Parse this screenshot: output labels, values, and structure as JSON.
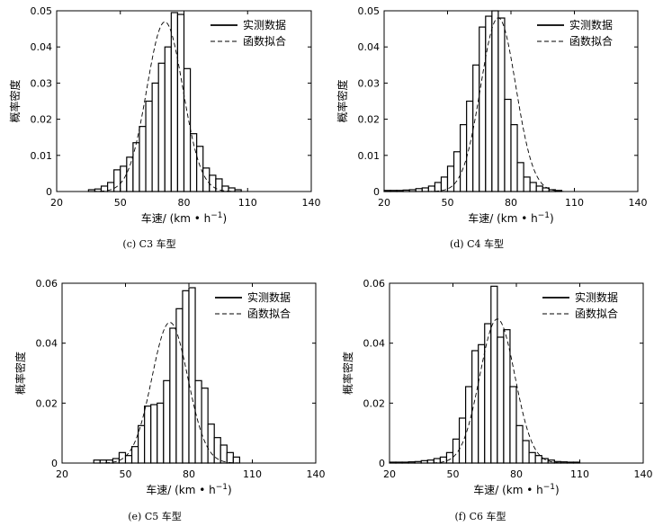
{
  "chart_data": [
    {
      "type": "bar",
      "panel_caption": "(c) C3 车型",
      "xlabel": "车速/ (km • h",
      "xlabel_sup": "−1",
      "xlabel_suffix": ")",
      "ylabel": "概率密度",
      "xlim": [
        20,
        140
      ],
      "ylim": [
        0,
        0.05
      ],
      "xticks": [
        20,
        50,
        80,
        110,
        140
      ],
      "yticks": [
        0,
        0.01,
        0.02,
        0.03,
        0.04,
        0.05
      ],
      "ytick_labels": [
        "0",
        "0.01",
        "0.02",
        "0.03",
        "0.04",
        "0.05"
      ],
      "legend": [
        "实测数据",
        "函数拟合"
      ],
      "legend_position": "top-right",
      "bin_width": 3,
      "bin_start": 35,
      "values": [
        0.0005,
        0.0007,
        0.0015,
        0.0025,
        0.006,
        0.007,
        0.0095,
        0.0135,
        0.018,
        0.025,
        0.03,
        0.0355,
        0.04,
        0.0495,
        0.049,
        0.034,
        0.016,
        0.0125,
        0.0065,
        0.0045,
        0.0035,
        0.0015,
        0.001,
        0.0005
      ],
      "fit_mean": 71,
      "fit_std": 8.5
    },
    {
      "type": "bar",
      "panel_caption": "(d) C4 车型",
      "xlabel": "车速/ (km • h",
      "xlabel_sup": "−1",
      "xlabel_suffix": ")",
      "ylabel": "概率密度",
      "xlim": [
        20,
        140
      ],
      "ylim": [
        0,
        0.05
      ],
      "xticks": [
        20,
        50,
        80,
        110,
        140
      ],
      "yticks": [
        0,
        0.01,
        0.02,
        0.03,
        0.04,
        0.05
      ],
      "ytick_labels": [
        "0",
        "0.01",
        "0.02",
        "0.03",
        "0.04",
        "0.05"
      ],
      "legend": [
        "实测数据",
        "函数拟合"
      ],
      "legend_position": "top-right",
      "bin_width": 3,
      "bin_start": 20,
      "values": [
        0.0003,
        0.0003,
        0.0003,
        0.0004,
        0.0005,
        0.0008,
        0.001,
        0.0015,
        0.0025,
        0.004,
        0.007,
        0.011,
        0.0185,
        0.025,
        0.035,
        0.0455,
        0.0485,
        0.05,
        0.048,
        0.0255,
        0.0185,
        0.008,
        0.004,
        0.0025,
        0.0015,
        0.001,
        0.0005,
        0.0003
      ],
      "fit_mean": 74,
      "fit_std": 8.3
    },
    {
      "type": "bar",
      "panel_caption": "(e) C5 车型",
      "xlabel": "车速/ (km • h",
      "xlabel_sup": "−1",
      "xlabel_suffix": ")",
      "ylabel": "概率密度",
      "xlim": [
        20,
        140
      ],
      "ylim": [
        0,
        0.06
      ],
      "xticks": [
        20,
        50,
        80,
        110,
        140
      ],
      "yticks": [
        0,
        0.02,
        0.04,
        0.06
      ],
      "ytick_labels": [
        "0",
        "0.02",
        "0.04",
        "0.06"
      ],
      "legend": [
        "实测数据",
        "函数拟合"
      ],
      "legend_position": "top-right",
      "bin_width": 3,
      "bin_start": 35,
      "values": [
        0.001,
        0.001,
        0.001,
        0.0015,
        0.0035,
        0.0025,
        0.0055,
        0.0125,
        0.019,
        0.0195,
        0.02,
        0.0275,
        0.045,
        0.0515,
        0.0575,
        0.0585,
        0.0275,
        0.025,
        0.013,
        0.0085,
        0.006,
        0.0035,
        0.002
      ],
      "fit_mean": 71,
      "fit_std": 8.5
    },
    {
      "type": "bar",
      "panel_caption": "(f) C6 车型",
      "xlabel": "车速/ (km • h",
      "xlabel_sup": "−1",
      "xlabel_suffix": ")",
      "ylabel": "概率密度",
      "xlim": [
        20,
        140
      ],
      "ylim": [
        0,
        0.06
      ],
      "xticks": [
        20,
        50,
        80,
        110,
        140
      ],
      "yticks": [
        0,
        0.02,
        0.04,
        0.06
      ],
      "ytick_labels": [
        "0",
        "0.02",
        "0.04",
        "0.06"
      ],
      "legend": [
        "实测数据",
        "函数拟合"
      ],
      "legend_position": "top-right",
      "bin_width": 3,
      "bin_start": 20,
      "values": [
        0.0003,
        0.0003,
        0.0003,
        0.0004,
        0.0005,
        0.0008,
        0.001,
        0.0015,
        0.002,
        0.0035,
        0.008,
        0.015,
        0.0255,
        0.0375,
        0.0395,
        0.0465,
        0.059,
        0.042,
        0.0445,
        0.0255,
        0.0125,
        0.0075,
        0.0035,
        0.0025,
        0.0015,
        0.001,
        0.0005,
        0.0004,
        0.0003,
        0.0003
      ],
      "fit_mean": 71,
      "fit_std": 8.3
    }
  ]
}
